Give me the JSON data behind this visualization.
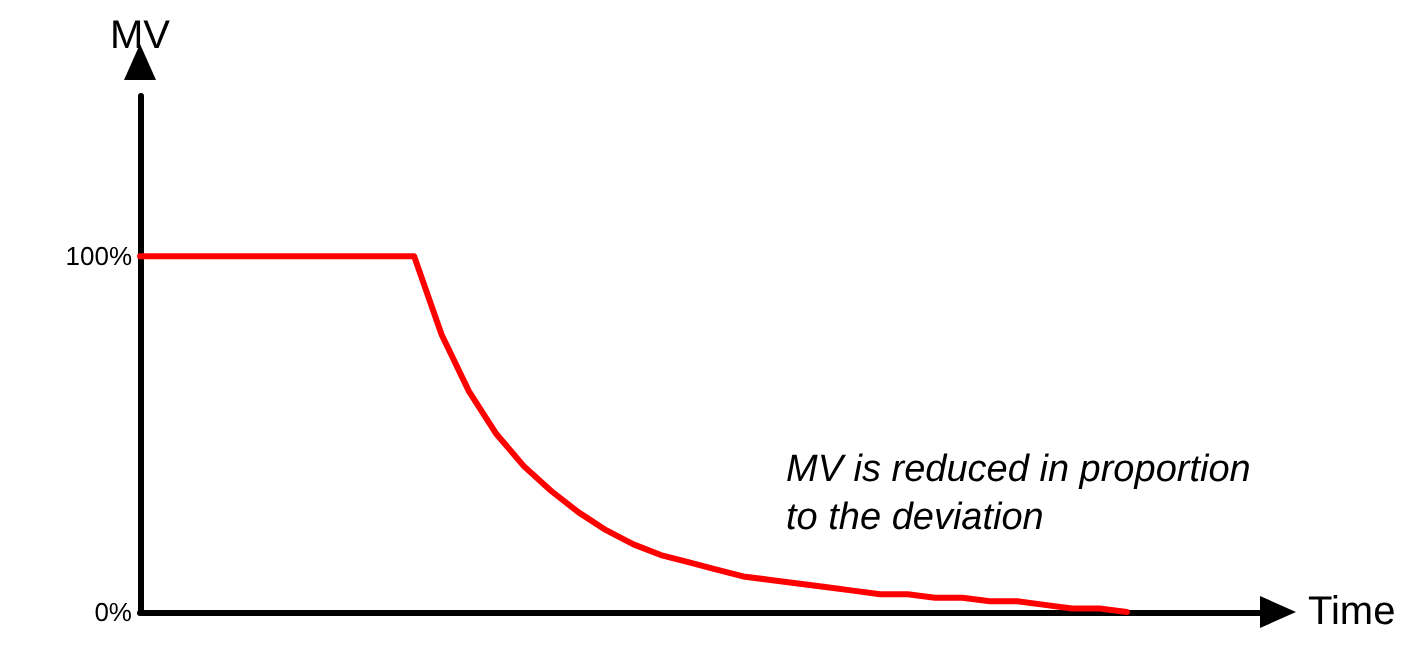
{
  "chart_data": {
    "type": "line",
    "xlabel": "Time",
    "ylabel": "MV",
    "annotations": [
      "MV is reduced in proportion to the deviation"
    ],
    "categories": [
      null,
      null,
      null,
      null,
      null,
      null,
      null,
      null,
      null,
      null,
      null,
      null,
      null,
      null,
      null,
      null,
      null,
      null,
      null,
      null,
      null,
      null,
      null,
      null,
      null,
      null,
      null,
      null,
      null,
      null,
      null,
      null,
      null,
      null,
      null,
      null,
      null,
      null,
      null,
      null,
      null,
      null
    ],
    "series": [
      {
        "color": "#ff0000",
        "values": [
          100,
          100,
          100,
          100,
          100,
          100,
          100,
          100,
          100,
          100,
          100,
          78,
          62,
          50,
          41,
          34,
          28,
          23,
          19,
          16,
          14,
          12,
          10,
          9,
          8,
          7,
          6,
          5,
          5,
          4,
          4,
          3,
          3,
          2,
          1,
          1,
          0,
          null,
          null,
          null,
          null,
          null
        ]
      }
    ],
    "ylim": [
      0,
      145
    ],
    "yticks": [
      {
        "value": 0,
        "label": "0%"
      },
      {
        "value": 100,
        "label": "100%"
      }
    ],
    "grid": false,
    "marker": "none",
    "line_style": "solid"
  }
}
